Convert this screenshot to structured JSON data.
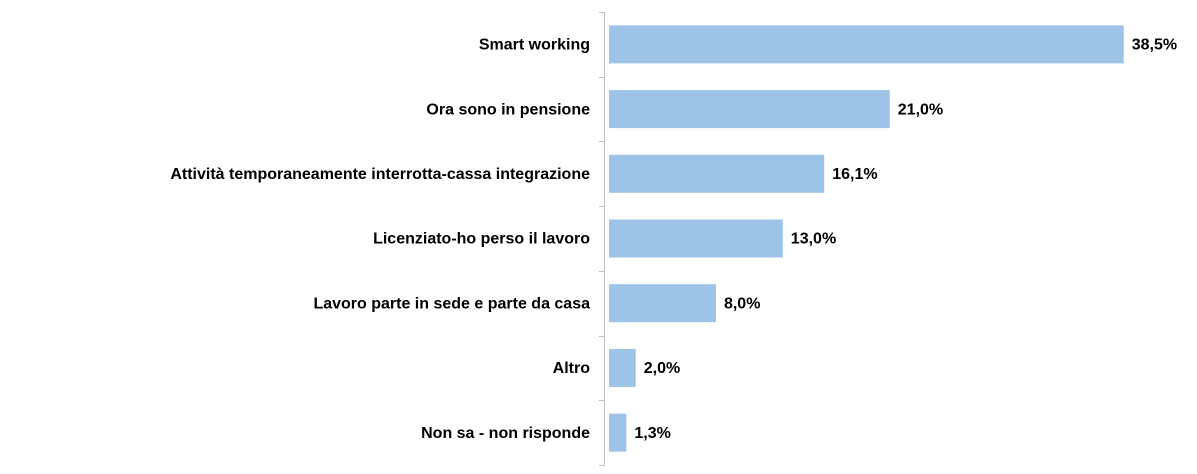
{
  "chart_data": {
    "type": "bar",
    "orientation": "horizontal",
    "categories": [
      "Smart working",
      "Ora sono in pensione",
      "Attività temporaneamente interrotta-cassa integrazione",
      "Licenziato-ho perso il lavoro",
      "Lavoro parte in sede e parte da casa",
      "Altro",
      "Non sa - non risponde"
    ],
    "values": [
      38.5,
      21.0,
      16.1,
      13.0,
      8.0,
      2.0,
      1.3
    ],
    "value_labels": [
      "38,5%",
      "21,0%",
      "16,1%",
      "13,0%",
      "8,0%",
      "2,0%",
      "1,3%"
    ],
    "color": "#9dc3e6"
  }
}
